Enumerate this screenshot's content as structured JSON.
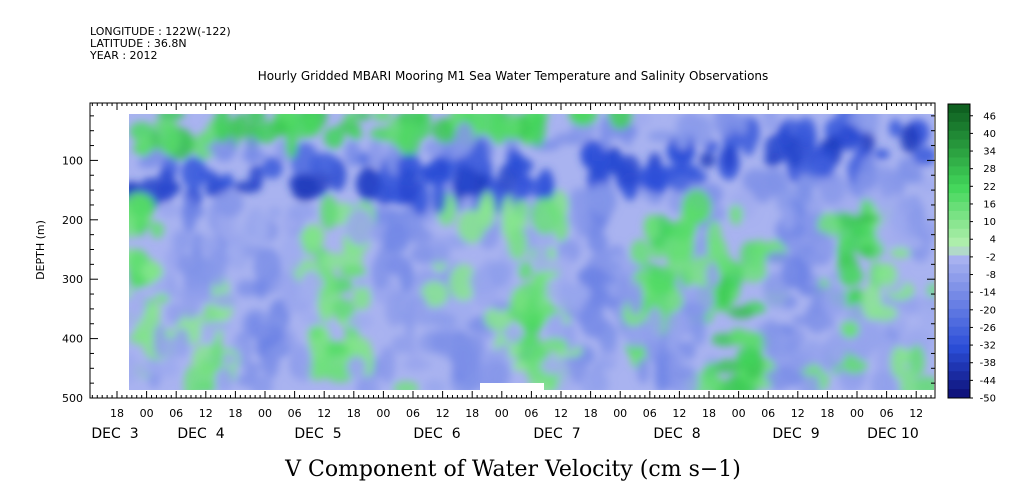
{
  "header": {
    "longitude": "LONGITUDE : 122W(-122)",
    "latitude": "LATITUDE : 36.8N",
    "year": "YEAR : 2012"
  },
  "chart_data": {
    "type": "heatmap",
    "title": "Hourly Gridded MBARI Mooring M1 Sea Water Temperature and Salinity Observations",
    "xlabel": "V Component of Water Velocity (cm s−1)",
    "ylabel": "DEPTH (m)",
    "x_axis": {
      "hour_ticks": [
        "18",
        "00",
        "06",
        "12",
        "18",
        "00",
        "06",
        "12",
        "18",
        "00",
        "06",
        "12",
        "18",
        "00",
        "06",
        "12",
        "18",
        "00",
        "06",
        "12",
        "18",
        "00",
        "06",
        "12",
        "18",
        "00",
        "06",
        "12"
      ],
      "date_labels": [
        "DEC  3",
        "DEC  4",
        "DEC  5",
        "DEC  6",
        "DEC  7",
        "DEC  8",
        "DEC  9",
        "DEC 10"
      ]
    },
    "y_axis": {
      "ticks": [
        100,
        200,
        300,
        400,
        500
      ],
      "tick_labels": [
        "100",
        "200",
        "300",
        "400",
        "500"
      ],
      "ylim": [
        0,
        500
      ],
      "inverted": true
    },
    "colorbar": {
      "labels": [
        "46",
        "40",
        "34",
        "28",
        "22",
        "16",
        "10",
        "4",
        "-2",
        "-8",
        "-14",
        "-20",
        "-26",
        "-32",
        "-38",
        "-44",
        "-50"
      ],
      "range": [
        -50,
        50
      ],
      "step": 3
    },
    "colors": {
      "negative_max": "#0a0a6e",
      "negative_mid": "#2b4ed8",
      "near_zero_neg": "#a9b3f0",
      "near_zero_pos": "#b6f0b2",
      "positive_mid": "#42d65a",
      "positive_max": "#0c5a1e"
    }
  }
}
